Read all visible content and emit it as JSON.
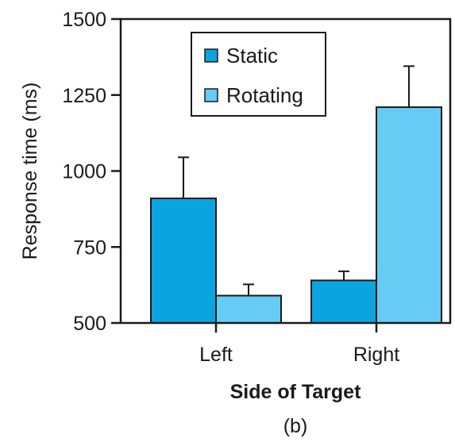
{
  "chart_data": {
    "type": "bar",
    "title": "",
    "xlabel": "Side of Target",
    "ylabel": "Response time (ms)",
    "panel_label": "(b)",
    "categories": [
      "Left",
      "Right"
    ],
    "ylim": [
      500,
      1500
    ],
    "yticks": [
      500,
      750,
      1000,
      1250,
      1500
    ],
    "grid": false,
    "legend_position": "top-center",
    "series": [
      {
        "name": "Static",
        "color": "#0aa5e0",
        "values": [
          910,
          640
        ],
        "error": [
          135,
          30
        ]
      },
      {
        "name": "Rotating",
        "color": "#66ccf3",
        "values": [
          590,
          1210
        ],
        "error": [
          37,
          135
        ]
      }
    ]
  }
}
